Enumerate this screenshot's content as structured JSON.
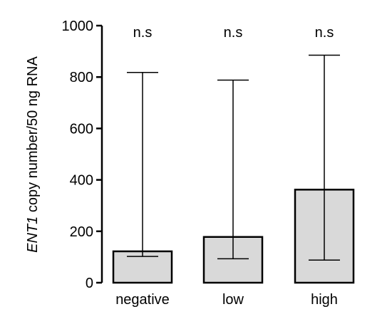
{
  "chart_data": {
    "type": "bar",
    "title": "",
    "xlabel": "",
    "ylabel_italic": "ENT1",
    "ylabel_rest": " copy number/50 ng RNA",
    "ylim": [
      0,
      1000
    ],
    "yticks": [
      0,
      200,
      400,
      600,
      800,
      1000
    ],
    "ytick_labels": [
      "0",
      "200",
      "400",
      "600",
      "800",
      "1000"
    ],
    "categories": [
      "negative",
      "low",
      "high"
    ],
    "values": [
      122,
      178,
      362
    ],
    "error_low": [
      102,
      93,
      88
    ],
    "error_high": [
      818,
      788,
      885
    ],
    "annotations": [
      "n.s",
      "n.s",
      "n.s"
    ],
    "bar_color": "#d9d9d9",
    "edge_color": "#000000",
    "grid": false
  }
}
